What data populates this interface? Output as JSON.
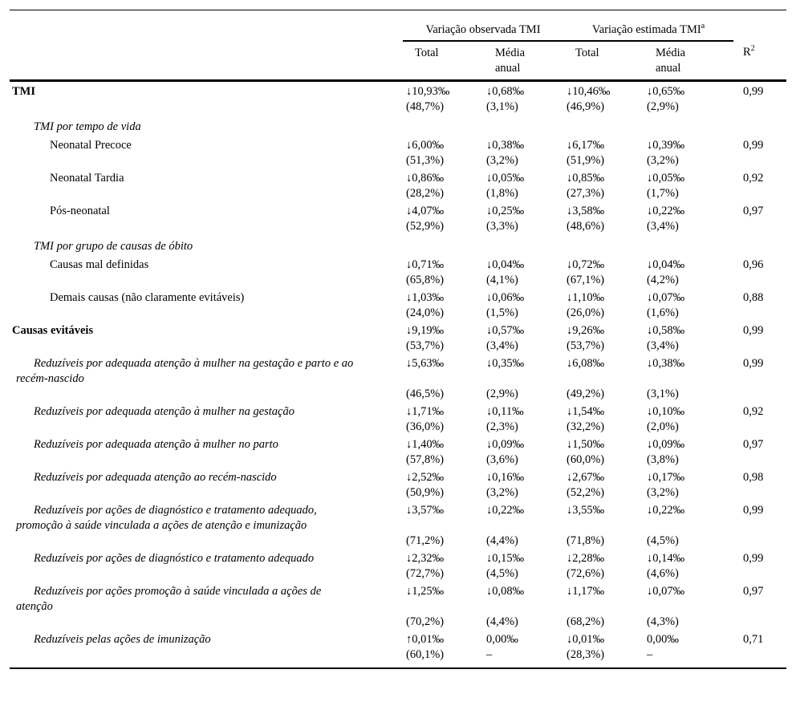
{
  "table": {
    "header": {
      "group_observed": "Variação observada TMI",
      "group_estimated": "Variação estimada TMI",
      "group_estimated_sup": "a",
      "col_total_observed": "Total",
      "col_media_observed": "Média\nanual",
      "col_total_estimated": "Total",
      "col_media_estimated": "Média\nanual",
      "r2_base": "R",
      "r2_sup": "2"
    },
    "rows": [
      {
        "style": "bold",
        "indent": 0,
        "label_lines": [
          "TMI"
        ],
        "values": [
          "↓10,93‰",
          "↓0,68‰",
          "↓10,46‰",
          "↓0,65‰"
        ],
        "r2": "0,99",
        "percents": [
          "(48,7%)",
          "(3,1%)",
          "(46,9%)",
          "(2,9%)"
        ]
      },
      {
        "type": "section",
        "label": "TMI por tempo de vida"
      },
      {
        "style": "plain",
        "indent": 2,
        "label_lines": [
          "Neonatal Precoce"
        ],
        "values": [
          "↓6,00‰",
          "↓0,38‰",
          "↓6,17‰",
          "↓0,39‰"
        ],
        "r2": "0,99",
        "percents": [
          "(51,3%)",
          "(3,2%)",
          "(51,9%)",
          "(3,2%)"
        ]
      },
      {
        "style": "plain",
        "indent": 2,
        "label_lines": [
          "Neonatal Tardia"
        ],
        "values": [
          "↓0,86‰",
          "↓0,05‰",
          "↓0,85‰",
          "↓0,05‰"
        ],
        "r2": "0,92",
        "percents": [
          "(28,2%)",
          "(1,8%)",
          "(27,3%)",
          "(1,7%)"
        ]
      },
      {
        "style": "plain",
        "indent": 2,
        "label_lines": [
          "Pós-neonatal"
        ],
        "values": [
          "↓4,07‰",
          "↓0,25‰",
          "↓3,58‰",
          "↓0,22‰"
        ],
        "r2": "0,97",
        "percents": [
          "(52,9%)",
          "(3,3%)",
          "(48,6%)",
          "(3,4%)"
        ]
      },
      {
        "type": "section",
        "label": "TMI por grupo de causas de óbito"
      },
      {
        "style": "plain",
        "indent": 2,
        "label_lines": [
          "Causas mal definidas"
        ],
        "values": [
          "↓0,71‰",
          "↓0,04‰",
          "↓0,72‰",
          "↓0,04‰"
        ],
        "r2": "0,96",
        "percents": [
          "(65,8%)",
          "(4,1%)",
          "(67,1%)",
          "(4,2%)"
        ]
      },
      {
        "style": "plain",
        "indent": 2,
        "label_lines": [
          "Demais causas (não claramente evitáveis)"
        ],
        "values": [
          "↓1,03‰",
          "↓0,06‰",
          "↓1,10‰",
          "↓0,07‰"
        ],
        "r2": "0,88",
        "percents": [
          "(24,0%)",
          "(1,5%)",
          "(26,0%)",
          "(1,6%)"
        ]
      },
      {
        "style": "bold",
        "indent": 0,
        "label_lines": [
          "Causas evitáveis"
        ],
        "values": [
          "↓9,19‰",
          "↓0,57‰",
          "↓9,26‰",
          "↓0,58‰"
        ],
        "r2": "0,99",
        "percents": [
          "(53,7%)",
          "(3,4%)",
          "(53,7%)",
          "(3,4%)"
        ]
      },
      {
        "style": "italic",
        "indent": 1,
        "label_lines": [
          "Reduzíveis por adequada atenção à mulher na gestação e parto e ao",
          "recém-nascido"
        ],
        "values": [
          "↓5,63‰",
          "↓0,35‰",
          "↓6,08‰",
          "↓0,38‰"
        ],
        "r2": "0,99",
        "percents": [
          "(46,5%)",
          "(2,9%)",
          "(49,2%)",
          "(3,1%)"
        ]
      },
      {
        "style": "italic",
        "indent": 1,
        "label_lines": [
          "Reduzíveis por adequada atenção à mulher na gestação"
        ],
        "values": [
          "↓1,71‰",
          "↓0,11‰",
          "↓1,54‰",
          "↓0,10‰"
        ],
        "r2": "0,92",
        "percents": [
          "(36,0%)",
          "(2,3%)",
          "(32,2%)",
          "(2,0%)"
        ]
      },
      {
        "style": "italic",
        "indent": 1,
        "label_lines": [
          "Reduzíveis por adequada atenção à mulher no parto"
        ],
        "values": [
          "↓1,40‰",
          "↓0,09‰",
          "↓1,50‰",
          "↓0,09‰"
        ],
        "r2": "0,97",
        "percents": [
          "(57,8%)",
          "(3,6%)",
          "(60,0%)",
          "(3,8%)"
        ]
      },
      {
        "style": "italic",
        "indent": 1,
        "label_lines": [
          "Reduzíveis por adequada atenção ao recém-nascido"
        ],
        "values": [
          "↓2,52‰",
          "↓0,16‰",
          "↓2,67‰",
          "↓0,17‰"
        ],
        "r2": "0,98",
        "percents": [
          "(50,9%)",
          "(3,2%)",
          "(52,2%)",
          "(3,2%)"
        ]
      },
      {
        "style": "italic",
        "indent": 1,
        "label_lines": [
          "Reduzíveis por ações de diagnóstico e tratamento adequado,",
          "promoção à saúde vinculada a ações de atenção e imunização"
        ],
        "values": [
          "↓3,57‰",
          "↓0,22‰",
          "↓3,55‰",
          "↓0,22‰"
        ],
        "r2": "0,99",
        "percents": [
          "(71,2%)",
          "(4,4%)",
          "(71,8%)",
          "(4,5%)"
        ]
      },
      {
        "style": "italic",
        "indent": 1,
        "label_lines": [
          "Reduzíveis por ações de diagnóstico e tratamento adequado"
        ],
        "values": [
          "↓2,32‰",
          "↓0,15‰",
          "↓2,28‰",
          "↓0,14‰"
        ],
        "r2": "0,99",
        "percents": [
          "(72,7%)",
          "(4,5%)",
          "(72,6%)",
          "(4,6%)"
        ]
      },
      {
        "style": "italic",
        "indent": 1,
        "label_lines": [
          "Reduzíveis por ações promoção à saúde vinculada a ações de",
          "atenção"
        ],
        "values": [
          "↓1,25‰",
          "↓0,08‰",
          "↓1,17‰",
          "↓0,07‰"
        ],
        "r2": "0,97",
        "percents": [
          "(70,2%)",
          "(4,4%)",
          "(68,2%)",
          "(4,3%)"
        ]
      },
      {
        "style": "italic",
        "indent": 1,
        "label_lines": [
          "Reduzíveis pelas ações de imunização"
        ],
        "values": [
          "↑0,01‰",
          "0,00‰",
          "↓0,01‰",
          "0,00‰"
        ],
        "r2": "0,71",
        "percents": [
          "(60,1%)",
          "–",
          "(28,3%)",
          "–"
        ]
      }
    ]
  }
}
